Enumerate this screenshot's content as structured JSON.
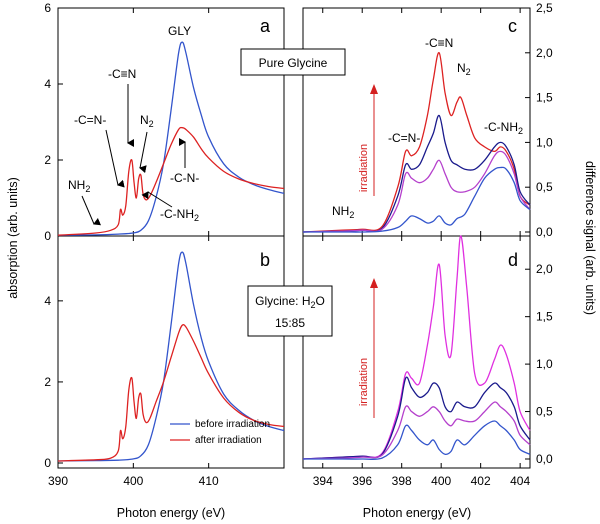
{
  "chart_data": [
    {
      "id": "a",
      "type": "line",
      "panel_label": "a",
      "xlabel": "Photon energy (eV)",
      "ylabel": "absorption (arb. units)",
      "xlim": [
        390,
        420
      ],
      "ylim": [
        0,
        6
      ],
      "xticks": [
        390,
        400,
        410
      ],
      "yticks": [
        0,
        2,
        4,
        6
      ],
      "box_label": "Pure Glycine",
      "series": [
        {
          "name": "before irradiation",
          "color": "#3355cc",
          "x": [
            390,
            395,
            398,
            400,
            401,
            402,
            403,
            404,
            405,
            406,
            406.5,
            407,
            408,
            409,
            410,
            412,
            414,
            416,
            418,
            420
          ],
          "y": [
            0.02,
            0.03,
            0.05,
            0.08,
            0.15,
            0.4,
            1.0,
            1.9,
            3.3,
            4.8,
            5.1,
            4.8,
            3.9,
            3.2,
            2.6,
            1.9,
            1.55,
            1.35,
            1.22,
            1.12
          ]
        },
        {
          "name": "after irradiation",
          "color": "#dd2222",
          "x": [
            390,
            395,
            397,
            398,
            398.3,
            398.6,
            399,
            399.4,
            399.8,
            400.1,
            400.4,
            400.7,
            401,
            401.3,
            401.7,
            402.2,
            403,
            404,
            405,
            406,
            406.5,
            407,
            408,
            409,
            410,
            412,
            414,
            416,
            418,
            420
          ],
          "y": [
            0.02,
            0.08,
            0.15,
            0.3,
            0.7,
            0.55,
            0.8,
            1.7,
            2.0,
            1.4,
            1.0,
            1.5,
            1.6,
            1.1,
            0.95,
            1.05,
            1.4,
            1.9,
            2.4,
            2.8,
            2.85,
            2.8,
            2.6,
            2.3,
            2.05,
            1.7,
            1.5,
            1.38,
            1.3,
            1.25
          ]
        }
      ],
      "annotations": [
        "GLY",
        "-C≡N",
        "-C=N-",
        "N2",
        "NH2",
        "-C-N-",
        "-C-NH2"
      ]
    },
    {
      "id": "b",
      "type": "line",
      "panel_label": "b",
      "xlabel": "Photon energy (eV)",
      "ylabel": "absorption (arb. units)",
      "xlim": [
        390,
        420
      ],
      "ylim": [
        0,
        6
      ],
      "xticks": [
        390,
        400,
        410
      ],
      "yticks": [
        0,
        2,
        4
      ],
      "box_label_line1": "Glycine: H2O",
      "box_label_line2": "15:85",
      "series": [
        {
          "name": "before irradiation",
          "color": "#3355cc",
          "x": [
            390,
            395,
            398,
            400,
            401,
            402,
            403,
            404,
            405,
            406,
            406.5,
            407,
            408,
            409,
            410,
            412,
            414,
            416,
            418,
            420
          ],
          "y": [
            0.05,
            0.06,
            0.07,
            0.1,
            0.18,
            0.45,
            1.1,
            2.0,
            3.4,
            4.9,
            5.2,
            4.9,
            3.9,
            3.1,
            2.5,
            1.7,
            1.3,
            1.05,
            0.9,
            0.8
          ]
        },
        {
          "name": "after irradiation",
          "color": "#dd2222",
          "x": [
            390,
            395,
            397,
            398,
            398.3,
            398.6,
            399,
            399.4,
            399.8,
            400.1,
            400.4,
            400.7,
            401,
            401.3,
            401.7,
            402.2,
            403,
            404,
            405,
            406,
            406.5,
            407,
            408,
            409,
            410,
            412,
            414,
            416,
            418,
            420
          ],
          "y": [
            0.05,
            0.08,
            0.12,
            0.3,
            0.8,
            0.6,
            0.9,
            1.8,
            2.1,
            1.5,
            1.1,
            1.6,
            1.7,
            1.2,
            1.0,
            1.1,
            1.5,
            2.0,
            2.6,
            3.2,
            3.4,
            3.35,
            3.0,
            2.6,
            2.2,
            1.6,
            1.25,
            1.05,
            0.95,
            0.9
          ]
        }
      ],
      "legend": {
        "placement": "bottom-right",
        "entries": [
          "before irradiation",
          "after irradiation"
        ]
      }
    },
    {
      "id": "c",
      "type": "line",
      "panel_label": "c",
      "xlabel": "Photon energy (eV)",
      "ylabel": "difference signal (arb. units)",
      "xlim": [
        393,
        404.5
      ],
      "ylim": [
        -0.1,
        2.5
      ],
      "xticks": [
        394,
        396,
        398,
        400,
        402,
        404
      ],
      "yticks": [
        "0,0",
        "0,5",
        "1,0",
        "1,5",
        "2,0",
        "2,5"
      ],
      "ytick_values": [
        0,
        0.5,
        1.0,
        1.5,
        2.0,
        2.5
      ],
      "red_label": "irradiation",
      "series": [
        {
          "name": "red",
          "color": "#dd2222",
          "x": [
            393,
            395,
            396,
            397,
            397.8,
            398.2,
            398.5,
            398.9,
            399.3,
            399.6,
            399.9,
            400.2,
            400.5,
            400.8,
            401,
            401.3,
            401.7,
            402.2,
            402.7,
            403,
            403.3,
            403.7,
            404,
            404.5
          ],
          "y": [
            0.0,
            0.02,
            0.03,
            0.06,
            0.5,
            0.9,
            0.85,
            0.95,
            1.3,
            1.7,
            2.0,
            1.55,
            1.3,
            1.45,
            1.5,
            1.3,
            1.05,
            0.95,
            0.9,
            0.95,
            0.9,
            0.7,
            0.4,
            0.3
          ]
        },
        {
          "name": "navy",
          "color": "#1a1a8c",
          "x": [
            393,
            395,
            396,
            397,
            397.8,
            398.2,
            398.5,
            398.9,
            399.3,
            399.6,
            399.9,
            400.2,
            400.5,
            400.8,
            401.2,
            401.7,
            402.2,
            402.7,
            403,
            403.3,
            403.7,
            404,
            404.5
          ],
          "y": [
            0.0,
            0.01,
            0.02,
            0.04,
            0.4,
            0.75,
            0.7,
            0.75,
            0.95,
            1.1,
            1.3,
            1.0,
            0.8,
            0.75,
            0.7,
            0.7,
            0.8,
            0.95,
            1.0,
            0.95,
            0.75,
            0.45,
            0.3
          ]
        },
        {
          "name": "violet",
          "color": "#b540cc",
          "x": [
            393,
            395,
            396,
            397,
            397.8,
            398.2,
            398.5,
            398.9,
            399.3,
            399.6,
            399.9,
            400.2,
            400.5,
            400.8,
            401.2,
            401.7,
            402.2,
            402.7,
            403,
            403.3,
            403.7,
            404,
            404.5
          ],
          "y": [
            0.0,
            0.01,
            0.02,
            0.03,
            0.3,
            0.65,
            0.6,
            0.55,
            0.6,
            0.7,
            0.8,
            0.65,
            0.5,
            0.45,
            0.45,
            0.5,
            0.65,
            0.85,
            0.9,
            0.85,
            0.65,
            0.4,
            0.25
          ]
        },
        {
          "name": "blue",
          "color": "#3355cc",
          "x": [
            393,
            395,
            396,
            397,
            397.8,
            398.2,
            398.5,
            398.9,
            399.3,
            399.6,
            399.9,
            400.2,
            400.5,
            400.8,
            401.2,
            401.7,
            402.2,
            402.7,
            403,
            403.3,
            403.7,
            404,
            404.5
          ],
          "y": [
            0.0,
            0.0,
            0.0,
            0.01,
            0.05,
            0.12,
            0.18,
            0.15,
            0.1,
            0.12,
            0.18,
            0.1,
            0.08,
            0.15,
            0.2,
            0.4,
            0.6,
            0.7,
            0.72,
            0.7,
            0.55,
            0.35,
            0.25
          ]
        }
      ],
      "annotations": [
        "-C≡N",
        "N2",
        "-C=N-",
        "-C-NH2",
        "NH2"
      ]
    },
    {
      "id": "d",
      "type": "line",
      "panel_label": "d",
      "xlabel": "Photon energy (eV)",
      "ylabel": "difference signal (arb. units)",
      "xlim": [
        393,
        404.5
      ],
      "ylim": [
        -0.1,
        2.5
      ],
      "xticks": [
        394,
        396,
        398,
        400,
        402,
        404
      ],
      "yticks": [
        "0,0",
        "0,5",
        "1,0",
        "1,5",
        "2,0"
      ],
      "ytick_values": [
        0,
        0.5,
        1.0,
        1.5,
        2.0
      ],
      "red_label": "irradiation",
      "series": [
        {
          "name": "magenta",
          "color": "#e030e0",
          "x": [
            393,
            395,
            396,
            397,
            397.8,
            398.2,
            398.5,
            398.9,
            399.3,
            399.6,
            399.9,
            400.2,
            400.5,
            400.8,
            401,
            401.3,
            401.7,
            402.2,
            402.7,
            403,
            403.3,
            403.7,
            404,
            404.5
          ],
          "y": [
            0.0,
            0.02,
            0.03,
            0.06,
            0.5,
            0.9,
            0.85,
            0.8,
            1.2,
            1.6,
            2.05,
            1.3,
            1.1,
            1.9,
            2.35,
            1.8,
            0.9,
            0.8,
            1.05,
            1.2,
            1.1,
            0.8,
            0.5,
            0.3
          ]
        },
        {
          "name": "navy",
          "color": "#1a1a8c",
          "x": [
            393,
            395,
            396,
            397,
            397.8,
            398.2,
            398.5,
            398.9,
            399.3,
            399.6,
            399.9,
            400.2,
            400.5,
            400.8,
            401.2,
            401.7,
            402.2,
            402.7,
            403,
            403.3,
            403.7,
            404,
            404.5
          ],
          "y": [
            0.0,
            0.02,
            0.03,
            0.05,
            0.45,
            0.85,
            0.75,
            0.65,
            0.7,
            0.8,
            0.75,
            0.55,
            0.5,
            0.6,
            0.55,
            0.55,
            0.7,
            0.8,
            0.75,
            0.7,
            0.55,
            0.35,
            0.2
          ]
        },
        {
          "name": "violet",
          "color": "#b540cc",
          "x": [
            393,
            395,
            396,
            397,
            397.8,
            398.2,
            398.5,
            398.9,
            399.3,
            399.6,
            399.9,
            400.2,
            400.5,
            400.8,
            401.2,
            401.7,
            402.2,
            402.7,
            403,
            403.3,
            403.7,
            404,
            404.5
          ],
          "y": [
            0.0,
            0.01,
            0.02,
            0.04,
            0.3,
            0.55,
            0.5,
            0.45,
            0.5,
            0.55,
            0.5,
            0.4,
            0.35,
            0.42,
            0.4,
            0.4,
            0.5,
            0.6,
            0.55,
            0.5,
            0.4,
            0.25,
            0.15
          ]
        },
        {
          "name": "blue",
          "color": "#3355cc",
          "x": [
            393,
            395,
            396,
            397,
            397.8,
            398.2,
            398.5,
            398.9,
            399.3,
            399.6,
            399.9,
            400.2,
            400.5,
            400.8,
            401.2,
            401.7,
            402.2,
            402.7,
            403,
            403.3,
            403.7,
            404,
            404.5
          ],
          "y": [
            0.0,
            0.0,
            0.0,
            0.01,
            0.15,
            0.35,
            0.3,
            0.2,
            0.15,
            0.2,
            0.1,
            0.05,
            0.08,
            0.2,
            0.15,
            0.25,
            0.35,
            0.4,
            0.35,
            0.3,
            0.2,
            0.1,
            0.05
          ]
        }
      ]
    }
  ],
  "labels": {
    "xlabel": "Photon energy (eV)",
    "ylabel_left": "absorption (arb. units)",
    "ylabel_right": "difference signal (arb. units)",
    "box_a": "Pure Glycine",
    "box_b_line1": "Glycine: H",
    "box_b_sub": "2",
    "box_b_tail": "O",
    "box_b_line2": "15:85",
    "legend_before": "before irradiation",
    "legend_after": "after irradiation",
    "irradiation": "irradiation",
    "ann_gly": "GLY",
    "ann_cn_triple": "-C≡N",
    "ann_cn_double": "-C=N-",
    "ann_n": "N",
    "ann_n_sub": "2",
    "ann_nh": "NH",
    "ann_nh_sub": "2",
    "ann_cn_single": "-C-N-",
    "ann_cnh": "-C-NH",
    "ann_cnh_sub": "2"
  },
  "colors": {
    "blue": "#3355cc",
    "red": "#dd2222",
    "navy": "#1a1a8c",
    "violet": "#b540cc",
    "magenta": "#e030e0"
  }
}
